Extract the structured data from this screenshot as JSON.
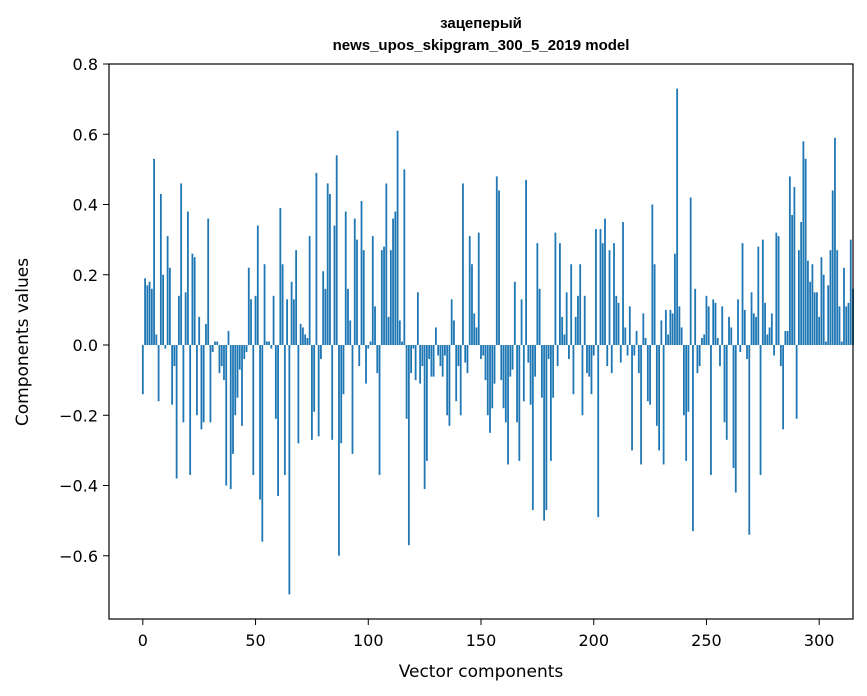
{
  "chart_data": {
    "type": "bar",
    "title": [
      "зацеперый",
      "news_upos_skipgram_300_5_2019 model"
    ],
    "xlabel": "Vector components",
    "ylabel": "Components values",
    "xlim": [
      -15,
      315
    ],
    "ylim": [
      -0.78,
      0.8
    ],
    "xticks": [
      0,
      50,
      100,
      150,
      200,
      250,
      300
    ],
    "yticks": [
      -0.6,
      -0.4,
      -0.2,
      0.0,
      0.2,
      0.4,
      0.6,
      0.8
    ],
    "ytick_labels": [
      "−0.6",
      "−0.4",
      "−0.2",
      "0.0",
      "0.2",
      "0.4",
      "0.6",
      "0.8"
    ],
    "bar_color": "#1f77b4",
    "values": [
      -0.14,
      0.19,
      0.17,
      0.18,
      0.16,
      0.53,
      0.03,
      -0.16,
      0.43,
      0.2,
      -0.01,
      0.31,
      0.22,
      -0.17,
      -0.06,
      -0.38,
      0.14,
      0.46,
      -0.22,
      0.15,
      0.38,
      -0.37,
      0.26,
      0.25,
      -0.2,
      0.08,
      -0.24,
      -0.22,
      0.06,
      0.36,
      -0.22,
      -0.02,
      0.01,
      0.01,
      -0.08,
      -0.06,
      -0.1,
      -0.4,
      0.04,
      -0.41,
      -0.31,
      -0.2,
      -0.15,
      -0.07,
      -0.23,
      -0.04,
      -0.02,
      0.22,
      0.13,
      -0.37,
      0.14,
      0.34,
      -0.44,
      -0.56,
      0.23,
      0.01,
      0.01,
      -0.01,
      0.14,
      -0.21,
      -0.43,
      0.39,
      0.23,
      -0.37,
      0.13,
      -0.71,
      0.18,
      0.13,
      0.27,
      -0.28,
      0.06,
      0.05,
      0.03,
      0.02,
      0.31,
      -0.27,
      -0.19,
      0.49,
      -0.26,
      -0.04,
      0.21,
      0.16,
      0.46,
      0.43,
      -0.27,
      0.34,
      0.54,
      -0.6,
      -0.28,
      -0.14,
      0.38,
      0.16,
      0.07,
      -0.31,
      0.36,
      0.3,
      -0.06,
      0.41,
      0.27,
      -0.11,
      -0.01,
      0.01,
      0.31,
      0.11,
      -0.08,
      -0.37,
      0.27,
      0.28,
      0.46,
      0.08,
      0.27,
      0.36,
      0.38,
      0.61,
      0.07,
      0.01,
      0.5,
      -0.21,
      -0.57,
      -0.08,
      -0.01,
      -0.1,
      0.15,
      -0.11,
      -0.06,
      -0.41,
      -0.33,
      -0.04,
      -0.09,
      -0.09,
      0.05,
      -0.03,
      -0.06,
      -0.09,
      -0.03,
      -0.2,
      -0.23,
      0.13,
      0.07,
      -0.16,
      -0.06,
      -0.2,
      0.46,
      -0.05,
      -0.08,
      0.31,
      0.23,
      0.09,
      0.05,
      0.32,
      -0.04,
      -0.03,
      -0.1,
      -0.2,
      -0.25,
      -0.18,
      -0.11,
      0.48,
      0.44,
      -0.1,
      -0.18,
      -0.22,
      -0.34,
      -0.09,
      -0.07,
      0.18,
      -0.22,
      -0.33,
      0.13,
      -0.16,
      0.47,
      -0.05,
      -0.17,
      -0.47,
      -0.09,
      0.29,
      0.16,
      -0.15,
      -0.5,
      -0.47,
      -0.04,
      -0.33,
      -0.15,
      0.32,
      -0.06,
      0.29,
      0.08,
      0.03,
      0.15,
      -0.04,
      0.23,
      -0.14,
      0.08,
      0.14,
      0.23,
      -0.2,
      0.14,
      -0.08,
      -0.09,
      -0.14,
      -0.03,
      0.33,
      -0.49,
      0.33,
      0.29,
      0.36,
      -0.06,
      0.27,
      -0.08,
      0.29,
      0.14,
      0.12,
      -0.05,
      0.35,
      0.05,
      -0.03,
      0.11,
      -0.3,
      -0.03,
      0.04,
      -0.08,
      -0.34,
      0.09,
      0.02,
      -0.16,
      -0.17,
      0.4,
      0.23,
      -0.23,
      -0.3,
      0.07,
      -0.34,
      0.1,
      0.03,
      0.1,
      0.09,
      0.26,
      0.73,
      0.11,
      0.05,
      -0.2,
      -0.33,
      -0.19,
      0.42,
      -0.53,
      0.16,
      -0.08,
      -0.06,
      0.02,
      0.03,
      0.14,
      0.11,
      -0.37,
      0.13,
      0.12,
      0.02,
      -0.06,
      0.11,
      -0.22,
      -0.27,
      0.08,
      0.05,
      -0.35,
      -0.42,
      0.13,
      -0.02,
      0.29,
      0.1,
      -0.04,
      -0.54,
      0.15,
      0.09,
      0.08,
      0.28,
      -0.37,
      0.3,
      0.12,
      0.03,
      0.05,
      0.09,
      -0.03,
      0.32,
      0.31,
      -0.06,
      -0.24,
      0.04,
      0.04,
      0.48,
      0.37,
      0.45,
      -0.21,
      0.27,
      0.35,
      0.58,
      0.53,
      0.24,
      0.18,
      0.23,
      0.15,
      0.15,
      0.08,
      0.25,
      0.2,
      0.01,
      0.17,
      0.27,
      0.44,
      0.59,
      0.27,
      0.11,
      0.01,
      0.22,
      0.11,
      0.12,
      0.3,
      0.16
    ]
  }
}
